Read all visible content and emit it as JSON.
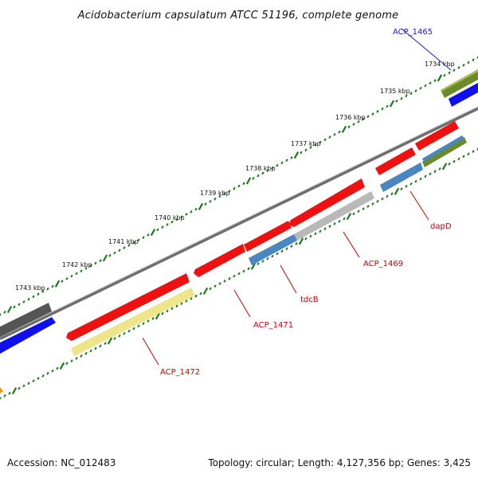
{
  "title": "Acidobacterium capsulatum ATCC 51196, complete genome",
  "footer": {
    "accession": "Accession: NC_012483",
    "stats": "Topology: circular; Length: 4,127,356 bp; Genes: 3,425"
  },
  "scale_labels": [
    "1734 kbp",
    "1735 kbp",
    "1736 kbp",
    "1737 kbp",
    "1738 kbp",
    "1739 kbp",
    "1740 kbp",
    "1741 kbp",
    "1742 kbp",
    "1743 kbp"
  ],
  "gene_labels": {
    "acp_1465": "ACP_1465",
    "dapd": "dapD",
    "acp_1469": "ACP_1469",
    "tdcb": "tdcB",
    "acp_1471": "ACP_1471",
    "acp_1472": "ACP_1472"
  },
  "colors": {
    "tick_green": "#1a7a1a",
    "backbone": "#777777",
    "gene_red": "#ee1111",
    "gene_steelblue": "#4a86c0",
    "gene_gray": "#b9b9b9",
    "gene_khaki": "#eee48a",
    "gene_olive": "#6d8a2a",
    "gene_blue": "#1010ee",
    "gene_darkgray": "#555555",
    "label_red": "#cc0000",
    "label_blue": "#1a1acc",
    "orange": "#f29a00"
  }
}
